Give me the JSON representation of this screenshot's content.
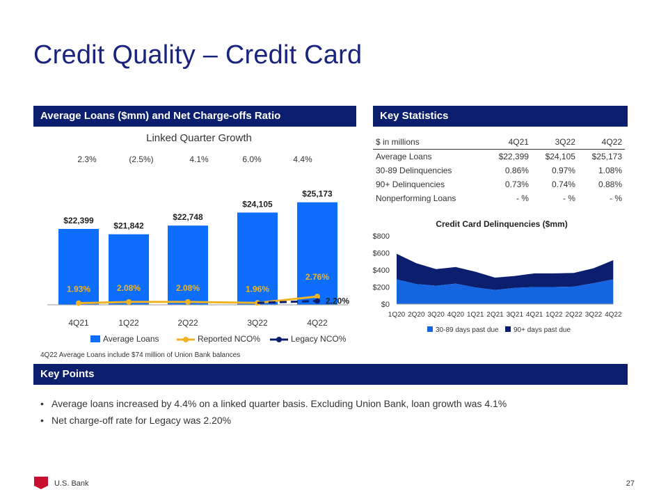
{
  "page_title": "Credit Quality – Credit Card",
  "sections": {
    "loans": "Average Loans ($mm) and Net Charge-offs Ratio",
    "stats": "Key Statistics",
    "key_points": "Key Points"
  },
  "growth": {
    "title": "Linked Quarter Growth",
    "values": [
      "2.3%",
      "(2.5%)",
      "4.1%",
      "6.0%",
      "4.4%"
    ]
  },
  "footnote": "4Q22 Average Loans include $74 million of Union Bank balances",
  "key_statistics": {
    "header": [
      "$ in millions",
      "4Q21",
      "3Q22",
      "4Q22"
    ],
    "rows": [
      [
        "Average Loans",
        "$22,399",
        "$24,105",
        "$25,173"
      ],
      [
        "30-89 Delinquencies",
        "0.86%",
        "0.97%",
        "1.08%"
      ],
      [
        "90+ Delinquencies",
        "0.73%",
        "0.74%",
        "0.88%"
      ],
      [
        "Nonperforming Loans",
        "- %",
        "- %",
        "- %"
      ]
    ]
  },
  "key_points": [
    "Average loans increased by 4.4% on a linked quarter basis.  Excluding Union Bank, loan growth was 4.1%",
    "Net charge-off rate for Legacy was 2.20%"
  ],
  "footer": {
    "brand": "U.S. Bank",
    "page": "27"
  },
  "colors": {
    "navy": "#0c1f6e",
    "bar_blue": "#0d6efd",
    "gold": "#f0b323",
    "red": "#c8102e"
  },
  "chart_data": [
    {
      "type": "bar",
      "title": "",
      "categories": [
        "4Q21",
        "1Q22",
        "2Q22",
        "3Q22",
        "4Q22"
      ],
      "bar_series": {
        "name": "Average Loans",
        "values": [
          22399,
          21842,
          22748,
          24105,
          25173
        ],
        "labels": [
          "$22,399",
          "$21,842",
          "$22,748",
          "$24,105",
          "$25,173"
        ]
      },
      "line_series": [
        {
          "name": "Reported NCO%",
          "values": [
            1.93,
            2.08,
            2.08,
            1.96,
            2.76
          ],
          "labels": [
            "1.93%",
            "2.08%",
            "2.08%",
            "1.96%",
            "2.76%"
          ]
        },
        {
          "name": "Legacy NCO%",
          "values": [
            null,
            null,
            null,
            1.96,
            2.2
          ],
          "labels": [
            "",
            "",
            "",
            "",
            "2.20%"
          ]
        }
      ],
      "legend": [
        "Average Loans",
        "Reported NCO%",
        "Legacy NCO%"
      ],
      "legend_position": "bottom"
    },
    {
      "type": "area",
      "stacked": true,
      "title": "Credit Card Delinquencies ($mm)",
      "x": [
        "1Q20",
        "2Q20",
        "3Q20",
        "4Q20",
        "1Q21",
        "2Q21",
        "3Q21",
        "4Q21",
        "1Q22",
        "2Q22",
        "3Q22",
        "4Q22"
      ],
      "yticks": [
        "$0",
        "$200",
        "$400",
        "$600",
        "$800"
      ],
      "ylim": [
        0,
        800
      ],
      "series": [
        {
          "name": "30-89 days past due",
          "values": [
            290,
            235,
            215,
            240,
            195,
            165,
            190,
            200,
            200,
            205,
            245,
            290
          ]
        },
        {
          "name": "90+ days past due",
          "values": [
            300,
            245,
            195,
            195,
            185,
            145,
            140,
            160,
            160,
            160,
            175,
            225
          ]
        }
      ],
      "legend_position": "bottom"
    }
  ]
}
